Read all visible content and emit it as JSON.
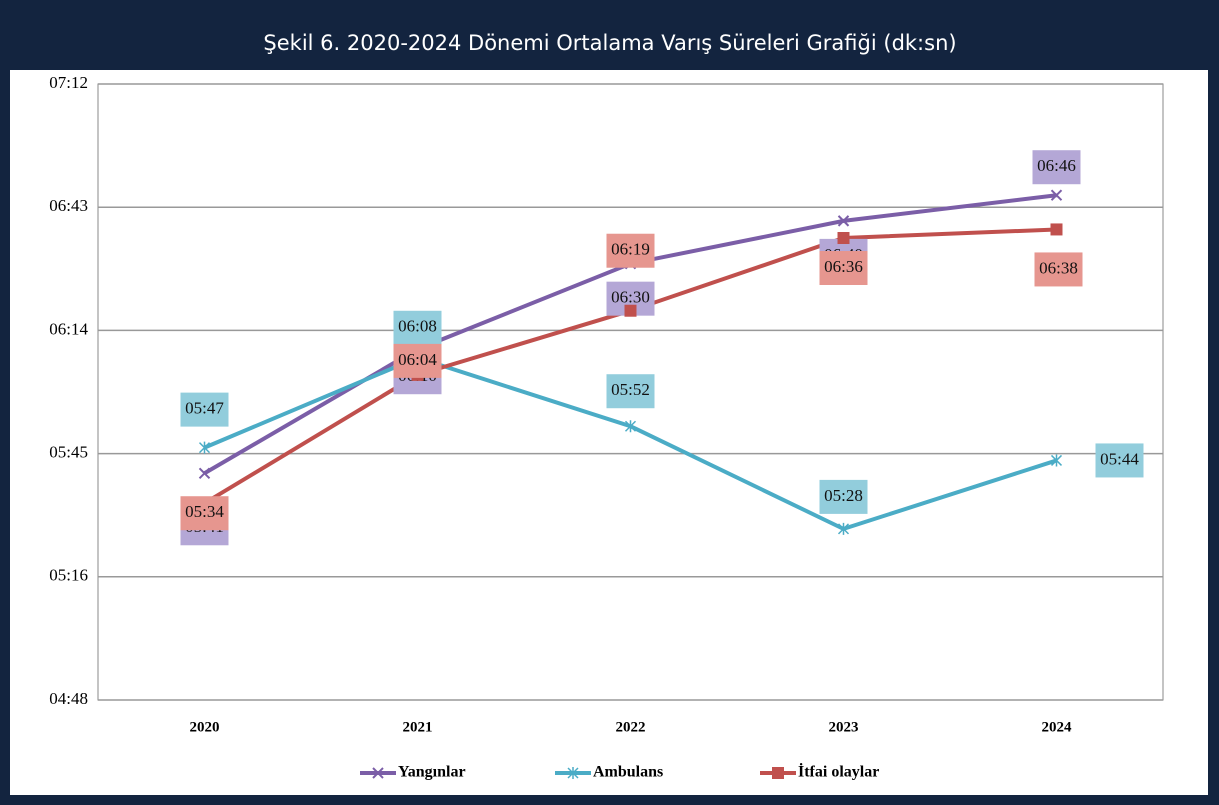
{
  "chart_data": {
    "type": "line",
    "title": "Şekil  6. 2020-2024 Dönemi Ortalama Varış Süreleri Grafiği (dk:sn)",
    "categories": [
      "2020",
      "2021",
      "2022",
      "2023",
      "2024"
    ],
    "series": [
      {
        "name": "Yangınlar",
        "color": "#7b5ea7",
        "label_color": "#b4a7d6",
        "values": [
          341,
          370,
          390,
          400,
          406
        ],
        "value_labels": [
          "05:41",
          "06:10",
          "06:30",
          "06:40",
          "06:46"
        ]
      },
      {
        "name": "Ambulans",
        "color": "#4bacc6",
        "label_color": "#92cddc",
        "values": [
          347,
          368,
          352,
          328,
          344
        ],
        "value_labels": [
          "05:47",
          "06:08",
          "05:52",
          "05:28",
          "05:44"
        ]
      },
      {
        "name": "İtfai olaylar",
        "color": "#c0504d",
        "label_color": "#e6968f",
        "values": [
          334,
          364,
          379,
          396,
          398
        ],
        "value_labels": [
          "05:34",
          "06:04",
          "06:19",
          "06:36",
          "06:38"
        ]
      }
    ],
    "ylim": [
      288,
      432
    ],
    "yticks": [
      {
        "value": 288,
        "label": "04:48"
      },
      {
        "value": 316.8,
        "label": "05:16"
      },
      {
        "value": 345.6,
        "label": "05:45"
      },
      {
        "value": 374.4,
        "label": "06:14"
      },
      {
        "value": 403.2,
        "label": "06:43"
      },
      {
        "value": 432,
        "label": "07:12"
      }
    ],
    "grid": true,
    "legend": "bottom"
  }
}
